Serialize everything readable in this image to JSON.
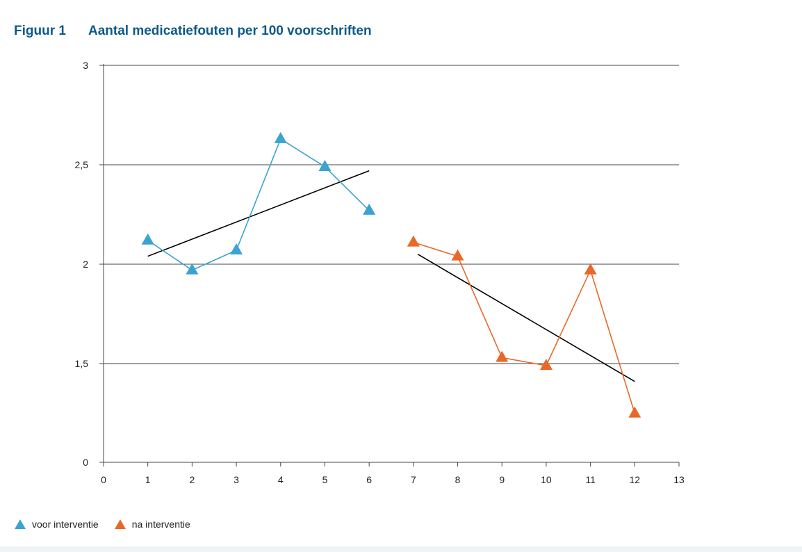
{
  "header": {
    "figure_label": "Figuur 1",
    "title": "Aantal medicatiefouten per 100 voorschriften"
  },
  "legend": {
    "items": [
      {
        "label": "voor interventie",
        "color": "#3aa3d0",
        "marker": "triangle-icon"
      },
      {
        "label": "na interventie",
        "color": "#e8682a",
        "marker": "triangle-icon"
      }
    ]
  },
  "chart_data": {
    "type": "line",
    "title": "Aantal medicatiefouten per 100 voorschriften",
    "xlabel": "",
    "ylabel": "",
    "x_ticks": [
      0,
      1,
      2,
      3,
      4,
      5,
      6,
      7,
      8,
      9,
      10,
      11,
      12,
      13
    ],
    "x_tick_labels": [
      "0",
      "1",
      "2",
      "3",
      "4",
      "5",
      "6",
      "7",
      "8",
      "9",
      "10",
      "11",
      "12",
      "13"
    ],
    "y_tick_labels": [
      "0",
      "1,5",
      "2",
      "2,5",
      "3"
    ],
    "y_broken_axis": true,
    "y_tick_values": [
      1.0,
      1.5,
      2.0,
      2.5,
      3.0
    ],
    "xlim": [
      0,
      13
    ],
    "ylim": [
      1.0,
      3.0
    ],
    "grid": "horizontal",
    "legend_position": "bottom-left",
    "series": [
      {
        "name": "voor interventie",
        "color": "#3aa3d0",
        "marker": "triangle",
        "x": [
          1,
          2,
          3,
          4,
          5,
          6
        ],
        "y": [
          2.12,
          1.97,
          2.07,
          2.63,
          2.49,
          2.27
        ]
      },
      {
        "name": "na interventie",
        "color": "#e8682a",
        "marker": "triangle",
        "x": [
          7,
          8,
          9,
          10,
          11,
          12
        ],
        "y": [
          2.11,
          2.04,
          1.53,
          1.49,
          1.97,
          1.25
        ]
      }
    ],
    "trendlines": [
      {
        "color": "#000000",
        "x": [
          1,
          6
        ],
        "y": [
          2.04,
          2.47
        ]
      },
      {
        "color": "#000000",
        "x": [
          7.1,
          12
        ],
        "y": [
          2.05,
          1.41
        ]
      }
    ]
  }
}
